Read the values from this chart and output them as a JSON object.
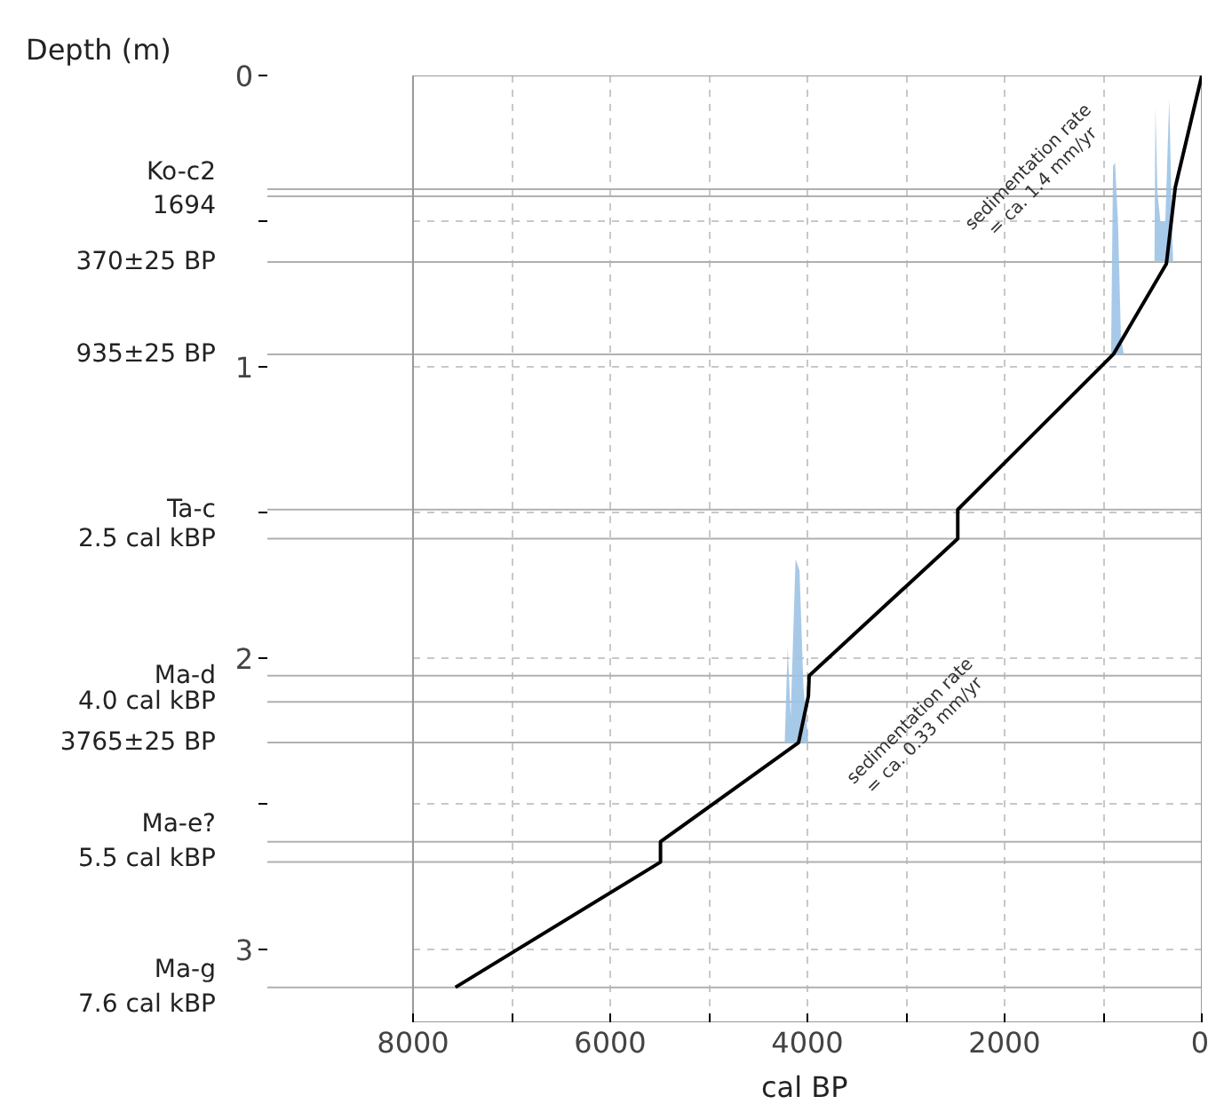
{
  "chart_data": {
    "type": "line",
    "ylabel": "Depth (m)",
    "xlabel": "cal BP",
    "xlim": [
      8000,
      0
    ],
    "ylim": [
      3.25,
      0
    ],
    "xticks": [
      8000,
      {
        "value": 7000,
        "label": null
      },
      6000,
      {
        "value": 5000,
        "label": null
      },
      4000,
      {
        "value": 3000,
        "label": null
      },
      2000,
      {
        "value": 1000,
        "label": null
      },
      0
    ],
    "yticks": [
      0,
      {
        "value": 0.5,
        "label": null
      },
      1,
      {
        "value": 1.5,
        "label": null
      },
      2,
      {
        "value": 2.5,
        "label": null
      },
      3
    ],
    "grid": true,
    "series": [
      {
        "type": "area",
        "color": "#9dc3e6",
        "x": [
          480,
          470,
          450,
          420,
          370,
          330,
          300,
          290
        ],
        "values": [
          0.64,
          0.11,
          0.4,
          0.5,
          0.5,
          0.08,
          0.55,
          0.64
        ]
      },
      {
        "type": "area",
        "color": "#9dc3e6",
        "x": [
          920,
          900,
          880,
          850,
          820,
          790
        ],
        "values": [
          0.957,
          0.31,
          0.3,
          0.5,
          0.9,
          0.957
        ]
      },
      {
        "type": "area",
        "color": "#9dc3e6",
        "x": [
          4230,
          4200,
          4170,
          4120,
          4080,
          4040,
          3990
        ],
        "values": [
          2.29,
          1.96,
          2.2,
          1.66,
          1.7,
          2.1,
          2.29
        ]
      },
      {
        "color": "#000000",
        "x": [
          0,
          269,
          359,
          897,
          2475,
          2475,
          3982,
          3990,
          4090,
          5490,
          5490,
          7570
        ],
        "values": [
          0,
          0.384,
          0.646,
          0.957,
          1.49,
          1.59,
          2.06,
          2.13,
          2.29,
          2.63,
          2.7,
          3.13
        ]
      }
    ],
    "ref_lines": [
      {
        "axis": "y",
        "value": 0.39,
        "label": "Ko-c2\n1694",
        "color": "#b0b0b0"
      },
      {
        "axis": "y",
        "value": 0.415,
        "color": "#b0b0b0"
      },
      {
        "axis": "y",
        "value": 0.64,
        "label": "370±25 BP",
        "color": "#b0b0b0"
      },
      {
        "axis": "y",
        "value": 0.957,
        "label": "935±25 BP",
        "color": "#b0b0b0"
      },
      {
        "axis": "y",
        "value": 1.49,
        "label": "Ta-c",
        "color": "#b0b0b0"
      },
      {
        "axis": "y",
        "value": 1.59,
        "label": "2.5 cal kBP",
        "color": "#b0b0b0"
      },
      {
        "axis": "y",
        "value": 2.06,
        "label": "Ma-d",
        "color": "#b0b0b0"
      },
      {
        "axis": "y",
        "value": 2.15,
        "label": "4.0 cal kBP",
        "color": "#b0b0b0"
      },
      {
        "axis": "y",
        "value": 2.29,
        "label": "3765±25 BP",
        "color": "#b0b0b0"
      },
      {
        "axis": "y",
        "value": 2.63,
        "label": "Ma-e?\n5.5 cal kBP",
        "color": "#b0b0b0"
      },
      {
        "axis": "y",
        "value": 2.7,
        "color": "#b0b0b0"
      },
      {
        "axis": "y",
        "value": 3.13,
        "label": "Ma-g\n7.6 cal kBP",
        "color": "#b0b0b0"
      }
    ],
    "annotations": [
      "sedimentation rate\n= ca. 1.4 mm/yr",
      "sedimentation rate\n= ca. 0.33 mm/yr"
    ]
  }
}
